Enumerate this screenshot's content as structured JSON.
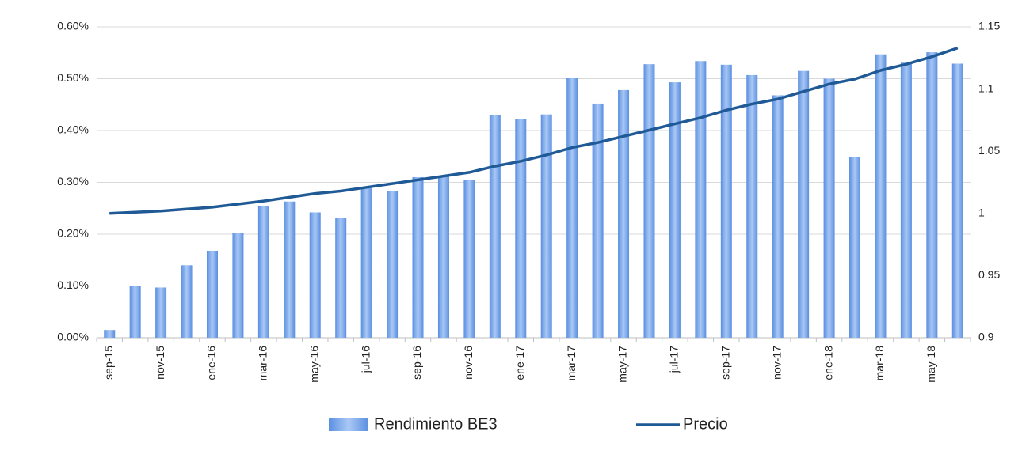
{
  "chart_data": {
    "type": "bar_line",
    "categories": [
      "sep-15",
      null,
      "nov-15",
      null,
      "ene-16",
      null,
      "mar-16",
      null,
      "may-16",
      null,
      "jul-16",
      null,
      "sep-16",
      null,
      "nov-16",
      null,
      "ene-17",
      null,
      "mar-17",
      null,
      "may-17",
      null,
      "jul-17",
      null,
      "sep-17",
      null,
      "nov-17",
      null,
      "ene-18",
      null,
      "mar-18",
      null,
      "may-18",
      null
    ],
    "series": [
      {
        "name": "Rendimiento BE3",
        "type": "bar",
        "color": "#5b8fe0",
        "values": [
          0.015,
          0.1,
          0.097,
          0.14,
          0.168,
          0.202,
          0.254,
          0.263,
          0.242,
          0.231,
          0.289,
          0.283,
          0.31,
          0.313,
          0.305,
          0.43,
          0.422,
          0.431,
          0.502,
          0.452,
          0.478,
          0.528,
          0.493,
          0.534,
          0.527,
          0.507,
          0.468,
          0.515,
          0.5,
          0.349,
          0.547,
          0.531,
          0.551,
          0.529
        ]
      },
      {
        "name": "Precio",
        "type": "line",
        "axis": "y2",
        "color": "#1f5a96",
        "values": [
          1.0,
          1.001,
          1.002,
          1.0035,
          1.005,
          1.0075,
          1.01,
          1.013,
          1.016,
          1.018,
          1.021,
          1.024,
          1.027,
          1.03,
          1.033,
          1.038,
          1.042,
          1.047,
          1.053,
          1.057,
          1.062,
          1.067,
          1.072,
          1.077,
          1.083,
          1.088,
          1.092,
          1.098,
          1.104,
          1.108,
          1.115,
          1.12,
          1.126,
          1.133
        ]
      }
    ],
    "ylim": [
      0,
      0.6
    ],
    "yticks": [
      {
        "value": 0,
        "label": "0.00%"
      },
      {
        "value": 0.1,
        "label": "0.10%"
      },
      {
        "value": 0.2,
        "label": "0.20%"
      },
      {
        "value": 0.3,
        "label": "0.30%"
      },
      {
        "value": 0.4,
        "label": "0.40%"
      },
      {
        "value": 0.5,
        "label": "0.50%"
      },
      {
        "value": 0.6,
        "label": "0.60%"
      }
    ],
    "y2lim": [
      0.9,
      1.15
    ],
    "y2ticks": [
      0.9,
      0.95,
      1,
      1.05,
      1.1,
      1.15
    ],
    "grid": true,
    "legend": "bottom"
  }
}
